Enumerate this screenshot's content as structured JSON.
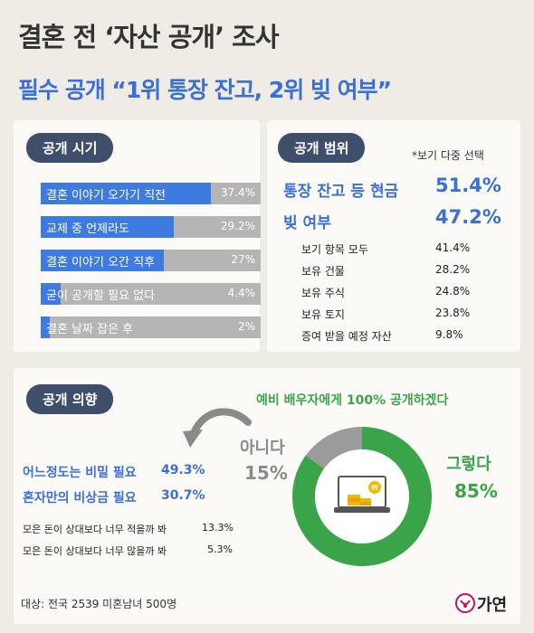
{
  "header": {
    "title": "결혼 전 ‘자산 공개’ 조사",
    "subtitle": "필수 공개 “1위 통장 잔고, 2위 빚 여부”"
  },
  "timing": {
    "pill": "공개 시기",
    "items": [
      {
        "label": "결혼 이야기 오가기 직전",
        "value": "37.4%",
        "pct": 37.4
      },
      {
        "label": "교제 중 언제라도",
        "value": "29.2%",
        "pct": 29.2
      },
      {
        "label": "결혼 이야기 오간 직후",
        "value": "27%",
        "pct": 27
      },
      {
        "label": "굳이 공개할 필요 없다",
        "value": "4.4%",
        "pct": 4.4
      },
      {
        "label": "결혼 날짜 잡은 후",
        "value": "2%",
        "pct": 2
      }
    ]
  },
  "scope": {
    "pill": "공개 범위",
    "note": "*보기 다중 선택",
    "top": [
      {
        "label": "통장 잔고 등 현금",
        "value": "51.4%"
      },
      {
        "label": "빚 여부",
        "value": "47.2%"
      }
    ],
    "rest": [
      {
        "label": "보기 항목 모두",
        "value": "41.4%"
      },
      {
        "label": "보유 건물",
        "value": "28.2%"
      },
      {
        "label": "보유 주식",
        "value": "24.8%"
      },
      {
        "label": "보유 토지",
        "value": "23.8%"
      },
      {
        "label": "증여 받을 예정 자산",
        "value": "9.8%"
      }
    ]
  },
  "intent": {
    "pill": "공개 의향",
    "headline": "예비 배우자에게 100% 공개하겠다",
    "no_reasons_blue": [
      {
        "label": "어느정도는 비밀 필요",
        "value": "49.3%"
      },
      {
        "label": "혼자만의 비상금 필요",
        "value": "30.7%"
      }
    ],
    "no_reasons_small": [
      {
        "label": "모은 돈이 상대보다 너무 적을까 봐",
        "value": "13.3%"
      },
      {
        "label": "모은 돈이 상대보다 너무 많을까 봐",
        "value": "5.3%"
      }
    ],
    "no_label": "아니다",
    "no_value": "15%",
    "yes_label": "그렇다",
    "yes_value": "85%"
  },
  "colors": {
    "blue": "#3b6fd4",
    "green": "#3aa548",
    "gray": "#9b9b9b",
    "pill": "#3f4f6b"
  },
  "footer": {
    "source": "대상: 전국 2539 미혼남녀 500명",
    "logo": "가연"
  },
  "chart_data": [
    {
      "type": "bar",
      "title": "공개 시기",
      "categories": [
        "결혼 이야기 오가기 직전",
        "교제 중 언제라도",
        "결혼 이야기 오간 직후",
        "굳이 공개할 필요 없다",
        "결혼 날짜 잡은 후"
      ],
      "values": [
        37.4,
        29.2,
        27,
        4.4,
        2
      ]
    },
    {
      "type": "pie",
      "title": "예비 배우자에게 100% 공개하겠다",
      "categories": [
        "그렇다",
        "아니다"
      ],
      "values": [
        85,
        15
      ]
    }
  ]
}
